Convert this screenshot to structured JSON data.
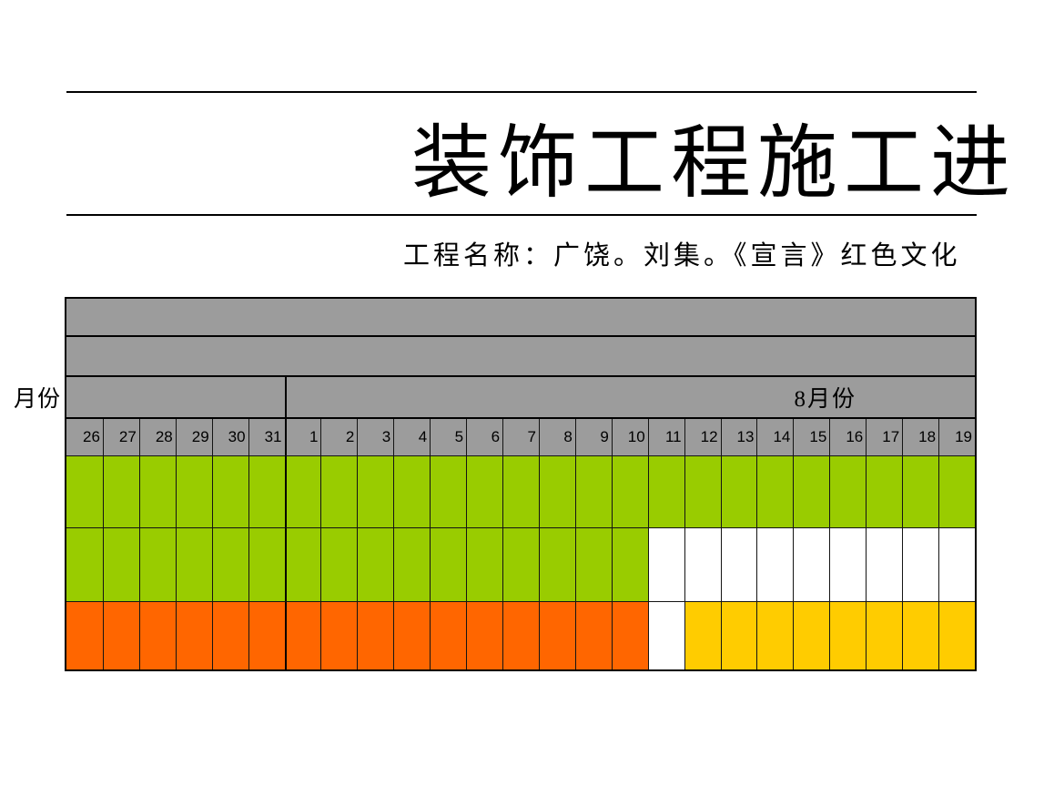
{
  "header": {
    "title": "装饰工程施工进",
    "subtitle": "工程名称：广饶。刘集。《宣言》红色文化"
  },
  "schedule": {
    "row_axis_label": "月份",
    "month_header": {
      "july_label": "",
      "august_label": "8月份"
    },
    "day_headers": [
      "26",
      "27",
      "28",
      "29",
      "30",
      "31",
      "1",
      "2",
      "3",
      "4",
      "5",
      "6",
      "7",
      "8",
      "9",
      "10",
      "11",
      "12",
      "13",
      "14",
      "15",
      "16",
      "17",
      "18",
      "19"
    ],
    "bar_rows": [
      {
        "name": "task-row-1",
        "cells": [
          "bar_green",
          "bar_green",
          "bar_green",
          "bar_green",
          "bar_green",
          "bar_green",
          "bar_green",
          "bar_green",
          "bar_green",
          "bar_green",
          "bar_green",
          "bar_green",
          "bar_green",
          "bar_green",
          "bar_green",
          "bar_green",
          "bar_green",
          "bar_green",
          "bar_green",
          "bar_green",
          "bar_green",
          "bar_green",
          "bar_green",
          "bar_green",
          "bar_green"
        ]
      },
      {
        "name": "task-row-2",
        "cells": [
          "bar_green",
          "bar_green",
          "bar_green",
          "bar_green",
          "bar_green",
          "bar_green",
          "bar_green",
          "bar_green",
          "bar_green",
          "bar_green",
          "bar_green",
          "bar_green",
          "bar_green",
          "bar_green",
          "bar_green",
          "bar_green",
          "empty_white",
          "empty_white",
          "empty_white",
          "empty_white",
          "empty_white",
          "empty_white",
          "empty_white",
          "empty_white",
          "empty_white"
        ]
      },
      {
        "name": "task-row-3",
        "cells": [
          "bar_orange",
          "bar_orange",
          "bar_orange",
          "bar_orange",
          "bar_orange",
          "bar_orange",
          "bar_orange",
          "bar_orange",
          "bar_orange",
          "bar_orange",
          "bar_orange",
          "bar_orange",
          "bar_orange",
          "bar_orange",
          "bar_orange",
          "bar_orange",
          "empty_white",
          "bar_yellow",
          "bar_yellow",
          "bar_yellow",
          "bar_yellow",
          "bar_yellow",
          "bar_yellow",
          "bar_yellow",
          "bar_yellow"
        ]
      }
    ]
  },
  "colors": {
    "table_gray": "#9C9C9C",
    "bar_green": "#99CC00",
    "bar_orange": "#FF6600",
    "bar_yellow": "#FFCC00",
    "empty_white": "#FFFFFF",
    "border_black": "#000000"
  }
}
